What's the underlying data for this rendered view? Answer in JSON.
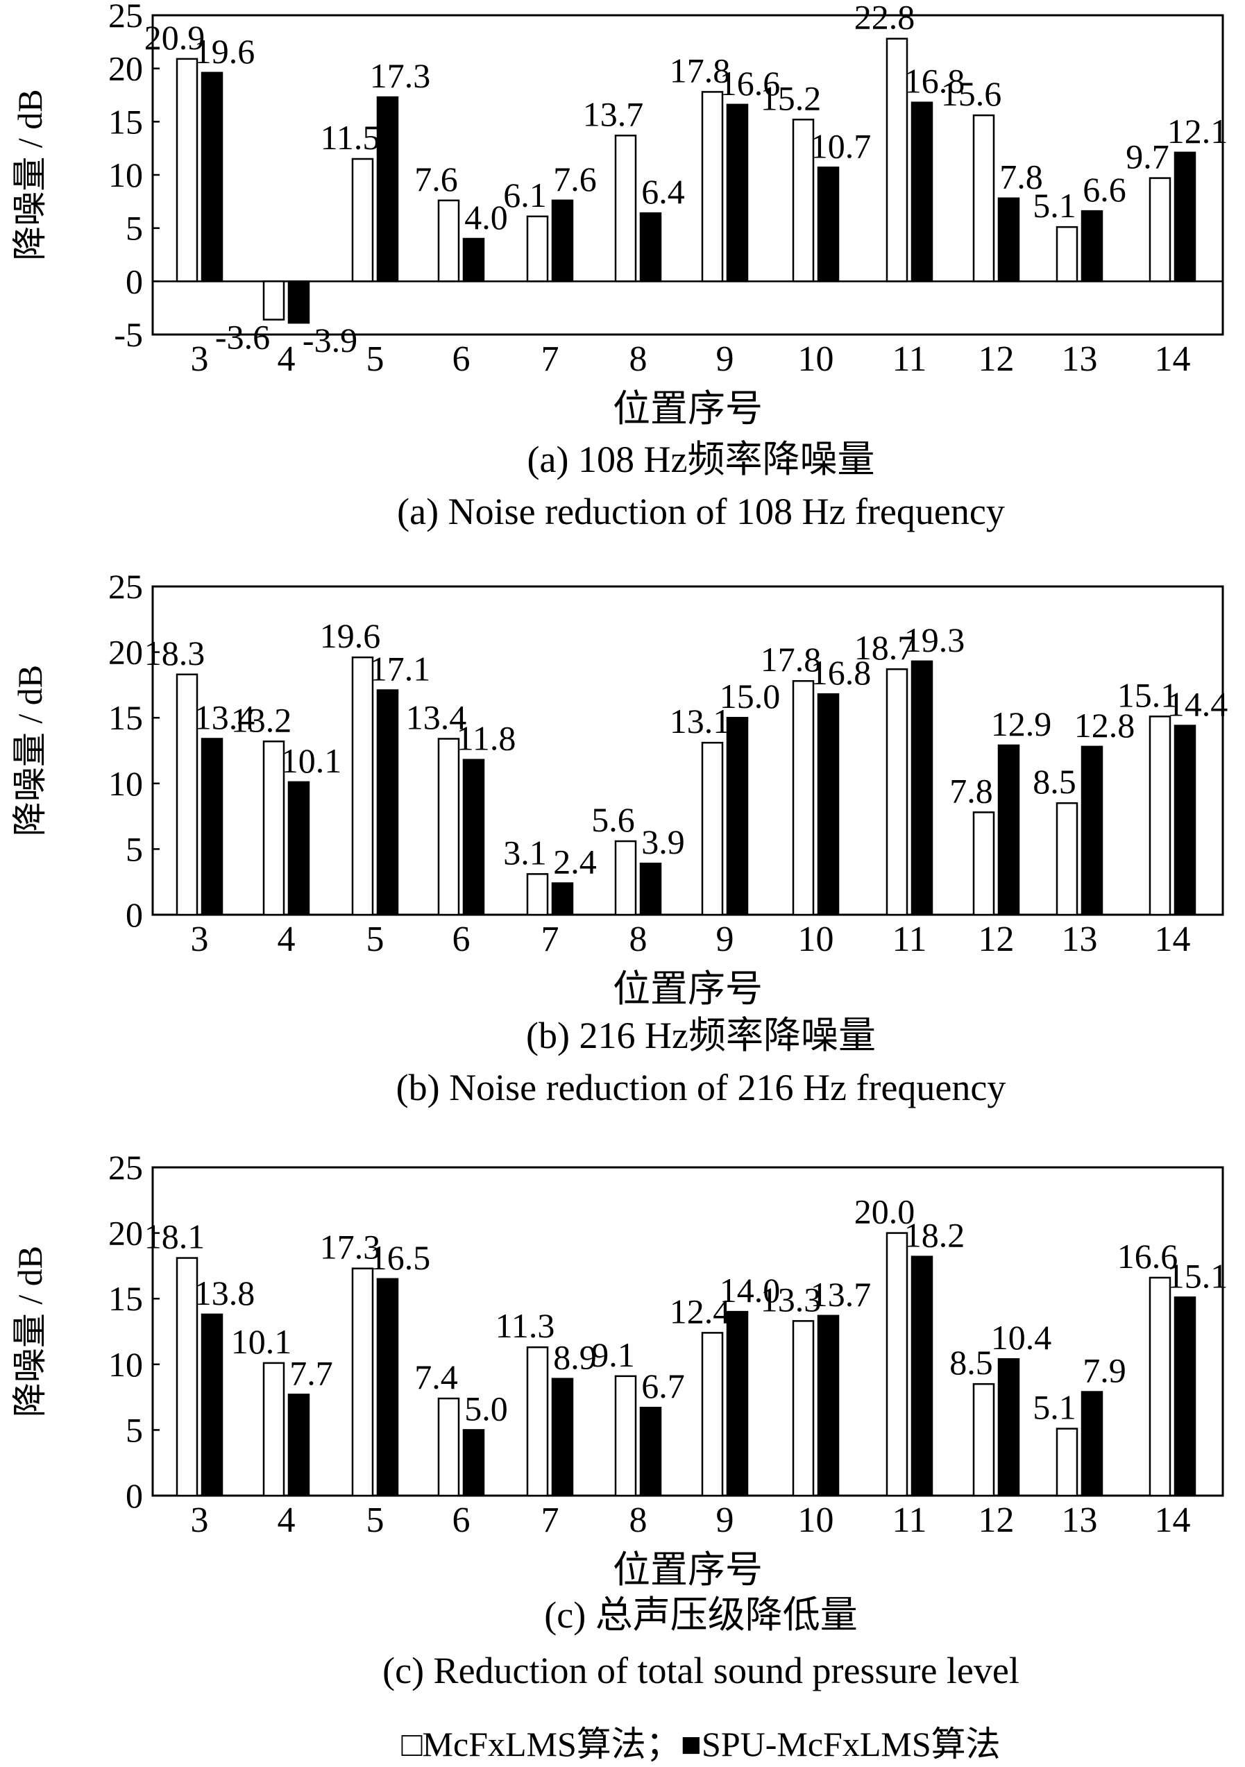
{
  "chart_data": [
    {
      "type": "bar",
      "categories": [
        "3",
        "4",
        "5",
        "6",
        "7",
        "8",
        "9",
        "10",
        "11",
        "12",
        "13",
        "14"
      ],
      "series": [
        {
          "name": "McFxLMS算法",
          "values": [
            20.9,
            -3.6,
            11.5,
            7.6,
            6.1,
            13.7,
            17.8,
            15.2,
            22.8,
            15.6,
            5.1,
            9.7
          ]
        },
        {
          "name": "SPU-McFxLMS算法",
          "values": [
            19.6,
            -3.9,
            17.3,
            4.0,
            7.6,
            6.4,
            16.6,
            10.7,
            16.8,
            7.8,
            6.6,
            12.1
          ]
        }
      ],
      "labels": [
        [
          "20.9",
          "-3.6",
          "11.5",
          "7.6",
          "6.1",
          "13.7",
          "17.8",
          "15.2",
          "22.8",
          "15.6",
          "5.1",
          "9.7"
        ],
        [
          "19.6",
          "-3.9",
          "17.3",
          "4.0",
          "7.6",
          "6.4",
          "16.6",
          "10.7",
          "16.8",
          "7.8",
          "6.6",
          "12.1"
        ]
      ],
      "ylim": [
        -5,
        25
      ],
      "yticks": [
        "-5",
        "0",
        "5",
        "10",
        "15",
        "20",
        "25"
      ],
      "ylabel": "降噪量 / dB",
      "xlabel": "位置序号",
      "title_cn": "(a) 108 Hz频率降噪量",
      "title_en": "(a) Noise reduction of 108 Hz frequency"
    },
    {
      "type": "bar",
      "categories": [
        "3",
        "4",
        "5",
        "6",
        "7",
        "8",
        "9",
        "10",
        "11",
        "12",
        "13",
        "14"
      ],
      "series": [
        {
          "name": "McFxLMS算法",
          "values": [
            18.3,
            13.2,
            19.6,
            13.4,
            3.1,
            5.6,
            13.1,
            17.8,
            18.7,
            7.8,
            8.5,
            15.1
          ]
        },
        {
          "name": "SPU-McFxLMS算法",
          "values": [
            13.4,
            10.1,
            17.1,
            11.8,
            2.4,
            3.9,
            15.0,
            16.8,
            19.3,
            12.9,
            12.8,
            14.4
          ]
        }
      ],
      "labels": [
        [
          "18.3",
          "13.2",
          "19.6",
          "13.4",
          "3.1",
          "5.6",
          "13.1",
          "17.8",
          "18.7",
          "7.8",
          "8.5",
          "15.1"
        ],
        [
          "13.4",
          "10.1",
          "17.1",
          "11.8",
          "2.4",
          "3.9",
          "15.0",
          "16.8",
          "19.3",
          "12.9",
          "12.8",
          "14.4"
        ]
      ],
      "ylim": [
        0,
        25
      ],
      "yticks": [
        "0",
        "5",
        "10",
        "15",
        "20",
        "25"
      ],
      "ylabel": "降噪量 / dB",
      "xlabel": "位置序号",
      "title_cn": "(b) 216 Hz频率降噪量",
      "title_en": "(b) Noise reduction of 216 Hz frequency"
    },
    {
      "type": "bar",
      "categories": [
        "3",
        "4",
        "5",
        "6",
        "7",
        "8",
        "9",
        "10",
        "11",
        "12",
        "13",
        "14"
      ],
      "series": [
        {
          "name": "McFxLMS算法",
          "values": [
            18.1,
            10.1,
            17.3,
            7.4,
            11.3,
            9.1,
            12.4,
            13.3,
            20.0,
            8.5,
            5.1,
            16.6
          ]
        },
        {
          "name": "SPU-McFxLMS算法",
          "values": [
            13.8,
            7.7,
            16.5,
            5.0,
            8.9,
            6.7,
            14.0,
            13.7,
            18.2,
            10.4,
            7.9,
            15.1
          ]
        }
      ],
      "labels": [
        [
          "18.1",
          "10.1",
          "17.3",
          "7.4",
          "11.3",
          "9.1",
          "12.4",
          "13.3",
          "20.0",
          "8.5",
          "5.1",
          "16.6"
        ],
        [
          "13.8",
          "7.7",
          "16.5",
          "5.0",
          "8.9",
          "6.7",
          "14.0",
          "13.7",
          "18.2",
          "10.4",
          "7.9",
          "15.1"
        ]
      ],
      "ylim": [
        0,
        25
      ],
      "yticks": [
        "0",
        "5",
        "10",
        "15",
        "20",
        "25"
      ],
      "ylabel": "降噪量 / dB",
      "xlabel": "位置序号",
      "title_cn": "(c) 总声压级降低量",
      "title_en": "(c) Reduction of total sound pressure level"
    }
  ],
  "legend": {
    "text": "□McFxLMS算法；■SPU-McFxLMS算法"
  }
}
